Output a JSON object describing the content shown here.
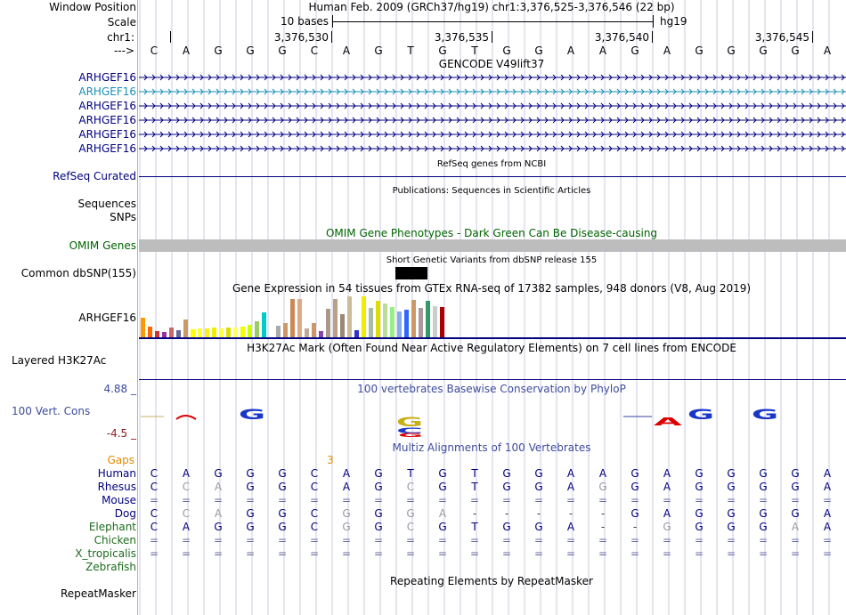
{
  "position": {
    "window_label": "Window Position",
    "scale_label": "Scale",
    "chrom_label": "chr1:",
    "arrow_label": "--->",
    "title": "Human Feb. 2009 (GRCh37/hg19)   chr1:3,376,525-3,376,546 (22 bp)",
    "scale_text": "10 bases",
    "assembly": "hg19",
    "coords": [
      "3,376,530",
      "3,376,535",
      "3,376,540",
      "3,376,545"
    ]
  },
  "sequence": [
    "C",
    "A",
    "G",
    "G",
    "G",
    "C",
    "A",
    "G",
    "T",
    "G",
    "T",
    "G",
    "G",
    "A",
    "A",
    "G",
    "A",
    "G",
    "G",
    "G",
    "G",
    "A"
  ],
  "gencode": {
    "title": "GENCODE V49lift37",
    "genes": [
      "ARHGEF16",
      "ARHGEF16",
      "ARHGEF16",
      "ARHGEF16",
      "ARHGEF16",
      "ARHGEF16"
    ]
  },
  "refseq": {
    "title": "RefSeq genes from NCBI",
    "label": "RefSeq Curated"
  },
  "publications": {
    "title": "Publications: Sequences in Scientific Articles",
    "label": "Sequences"
  },
  "snps_label": "SNPs",
  "omim": {
    "title": "OMIM Gene Phenotypes - Dark Green Can Be Disease-causing",
    "label": "OMIM Genes"
  },
  "dbsnp": {
    "title": "Short Genetic Variants from dbSNP release 155",
    "label": "Common dbSNP(155)"
  },
  "gtex": {
    "title": "Gene Expression in 54 tissues from GTEx RNA-seq of 17382 samples, 948 donors (V8, Aug 2019)",
    "label": "ARHGEF16"
  },
  "h3k27ac": {
    "title": "H3K27Ac Mark (Often Found Near Active Regulatory Elements) on 7 cell lines from ENCODE",
    "label": "Layered H3K27Ac"
  },
  "conservation": {
    "title": "100 vertebrates Basewise Conservation by PhyloP",
    "label": "100 Vert. Cons",
    "max": "4.88 _",
    "min": "-4.5 _"
  },
  "multiz": {
    "title": "Multiz Alignments of 100 Vertebrates",
    "gaps_label": "Gaps",
    "gap_marker": "3",
    "species": [
      {
        "name": "Human",
        "row": [
          "C",
          "A",
          "G",
          "G",
          "G",
          "C",
          "A",
          "G",
          "T",
          "G",
          "T",
          "G",
          "G",
          "A",
          "A",
          "G",
          "A",
          "G",
          "G",
          "G",
          "G",
          "A"
        ]
      },
      {
        "name": "Rhesus",
        "row": [
          "C",
          "C",
          "A",
          "G",
          "G",
          "C",
          "A",
          "G",
          "C",
          "G",
          "T",
          "G",
          "G",
          "A",
          "G",
          "G",
          "A",
          "G",
          "G",
          "G",
          "G",
          "A"
        ]
      },
      {
        "name": "Mouse",
        "row": [
          "=",
          "=",
          "=",
          "=",
          "=",
          "=",
          "=",
          "=",
          "=",
          "=",
          "=",
          "=",
          "=",
          "=",
          "=",
          "=",
          "=",
          "=",
          "=",
          "=",
          "=",
          "="
        ]
      },
      {
        "name": "Dog",
        "row": [
          "C",
          "C",
          "A",
          "G",
          "G",
          "C",
          "G",
          "G",
          "G",
          "A",
          "-",
          "-",
          "-",
          "-",
          "-",
          "G",
          "A",
          "G",
          "G",
          "G",
          "G",
          "A"
        ]
      },
      {
        "name": "Elephant",
        "row": [
          "C",
          "A",
          "G",
          "G",
          "G",
          "C",
          "G",
          "G",
          "C",
          "G",
          "T",
          "G",
          "G",
          "A",
          "-",
          "-",
          "G",
          "G",
          "G",
          "G",
          "A",
          "A"
        ]
      },
      {
        "name": "Chicken",
        "row": [
          "=",
          "=",
          "=",
          "=",
          "=",
          "=",
          "=",
          "=",
          "=",
          "=",
          "=",
          "=",
          "=",
          "=",
          "=",
          "=",
          "=",
          "=",
          "=",
          "=",
          "=",
          "="
        ]
      },
      {
        "name": "X_tropicalis",
        "row": [
          "=",
          "=",
          "=",
          "=",
          "=",
          "=",
          "=",
          "=",
          "=",
          "=",
          "=",
          "=",
          "=",
          "=",
          "=",
          "=",
          "=",
          "=",
          "=",
          "=",
          "=",
          "="
        ]
      },
      {
        "name": "Zebrafish",
        "row": []
      }
    ]
  },
  "repeatmasker": {
    "title": "Repeating Elements by RepeatMasker",
    "label": "RepeatMasker"
  },
  "colors": {
    "gene_blue": "#000080",
    "gene_teal": "#1a8fb5",
    "omim_green": "#006400",
    "conservation_blue": "#3e4c9a",
    "gaps_orange": "#e08a00",
    "multiz_green": "#1e6b1e",
    "guide": "#c8c8e8"
  }
}
